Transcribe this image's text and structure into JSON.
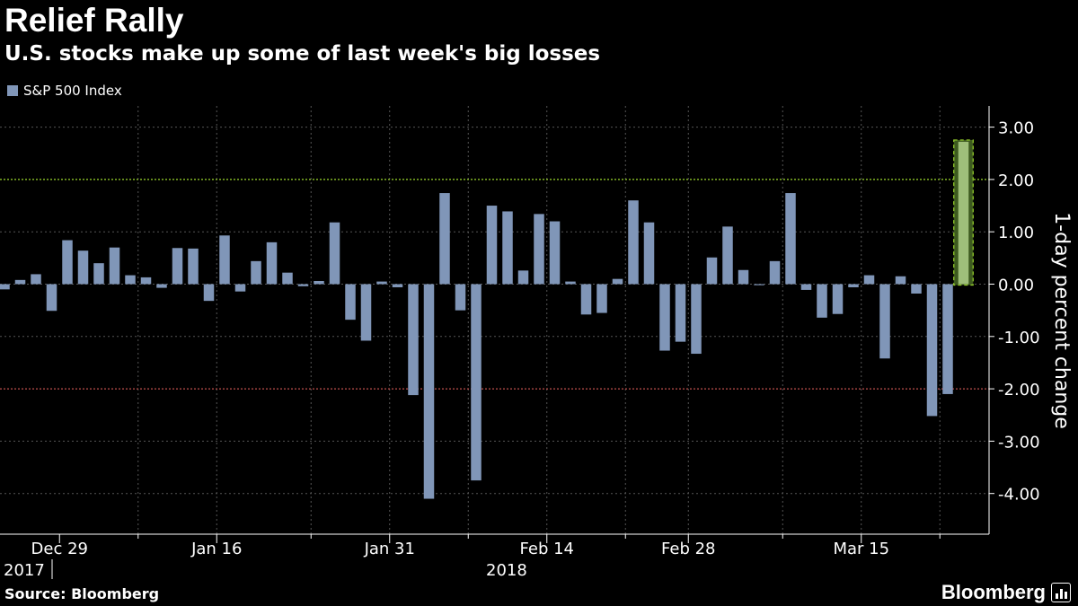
{
  "title": "Relief Rally",
  "subtitle": "U.S. stocks make up some of last week's big losses",
  "source": "Source: Bloomberg",
  "brand": "Bloomberg",
  "colors": {
    "background": "#000000",
    "bar": "#8096b8",
    "highlight_bar": "#9fbf7a",
    "highlight_box": "#3d5a1f",
    "upper_line": "#9bd72c",
    "lower_line": "#c0504d",
    "grid": "#555555",
    "text": "#ffffff"
  },
  "chart_data": {
    "type": "bar",
    "title": "Relief Rally",
    "subtitle": "U.S. stocks make up some of last week's big losses",
    "legend": [
      "S&P 500 Index"
    ],
    "ylabel": "1-day percent change",
    "ylim": [
      -4.6,
      3.3
    ],
    "yticks": [
      3,
      2,
      1,
      0,
      -1,
      -2,
      -3,
      -4
    ],
    "ytick_labels": [
      "3.00",
      "2.00",
      "1.00",
      "0.00",
      "-1.00",
      "-2.00",
      "-3.00",
      "-4.00"
    ],
    "reference_lines": [
      {
        "value": 2.0,
        "color": "#9bd72c",
        "style": "dotted"
      },
      {
        "value": -2.0,
        "color": "#c0504d",
        "style": "dotted"
      }
    ],
    "x_tick_labels": [
      {
        "index": 3.5,
        "label": "Dec 29"
      },
      {
        "index": 13.5,
        "label": "Jan 16"
      },
      {
        "index": 24.5,
        "label": "Jan 31"
      },
      {
        "index": 34.5,
        "label": "Feb 14"
      },
      {
        "index": 43.5,
        "label": "Feb 28"
      },
      {
        "index": 54.5,
        "label": "Mar 15"
      }
    ],
    "year_labels": [
      {
        "index": 0.5,
        "label": "2017"
      },
      {
        "index": 32.0,
        "label": "2018"
      }
    ],
    "series": [
      {
        "name": "S&P 500 Index",
        "values": [
          -0.1,
          0.08,
          0.19,
          -0.51,
          0.84,
          0.64,
          0.4,
          0.7,
          0.17,
          0.13,
          -0.07,
          0.69,
          0.68,
          -0.32,
          0.93,
          -0.14,
          0.44,
          0.8,
          0.22,
          -0.04,
          0.06,
          1.18,
          -0.68,
          -1.08,
          0.05,
          -0.06,
          -2.12,
          -4.1,
          1.74,
          -0.5,
          -3.75,
          1.5,
          1.39,
          0.26,
          1.34,
          1.2,
          0.05,
          -0.58,
          -0.55,
          0.1,
          1.6,
          1.18,
          -1.27,
          -1.1,
          -1.33,
          0.51,
          1.1,
          0.27,
          -0.02,
          0.44,
          1.74,
          -0.11,
          -0.64,
          -0.57,
          -0.06,
          0.17,
          -1.42,
          0.15,
          -0.18,
          -2.52,
          -2.1,
          2.72
        ],
        "highlight_last": true
      }
    ]
  }
}
